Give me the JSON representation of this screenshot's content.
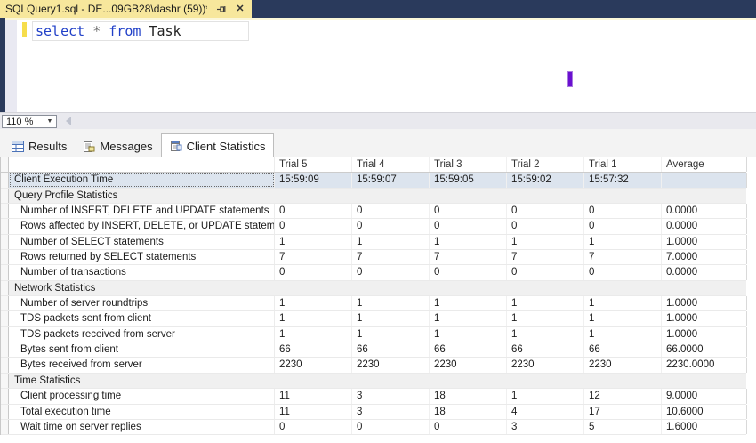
{
  "window": {
    "tab_title": "SQLQuery1.sql - DE...09GB28\\dashr (59))*",
    "pin_icon": "pin",
    "close_icon": "✕"
  },
  "editor": {
    "keyword1_part1": "sel",
    "keyword1_part2": "ect",
    "space": " ",
    "operator": "*",
    "keyword2": "from",
    "identifier": "Task"
  },
  "zoom_control": {
    "value": "110 %",
    "dropdown_icon": "▼"
  },
  "result_tabs": [
    {
      "label": "Results",
      "active": false
    },
    {
      "label": "Messages",
      "active": false
    },
    {
      "label": "Client Statistics",
      "active": true
    }
  ],
  "colors": {
    "tab_yellow": "#f7e79c",
    "title_bar_navy": "#2a3a5c",
    "keyword_blue": "#2140c8",
    "change_bar_yellow": "#f6dd4c",
    "selected_row": "#dce4ee",
    "arrow_steady": "#151515",
    "arrow_increase": "#c40000",
    "arrow_decrease": "#0a7d00",
    "text_cursor_purple": "#6a10d0"
  },
  "grid": {
    "columns": [
      "",
      "Trial 5",
      "Trial 4",
      "Trial 3",
      "Trial 2",
      "Trial 1",
      "Average"
    ],
    "rows": [
      {
        "type": "data",
        "selected": true,
        "label": "Client Execution Time",
        "values": [
          {
            "v": "15:59:09"
          },
          {
            "v": "15:59:07"
          },
          {
            "v": "15:59:05"
          },
          {
            "v": "15:59:02"
          },
          {
            "v": "15:57:32"
          },
          {
            "v": ""
          }
        ]
      },
      {
        "type": "section",
        "label": "Query Profile Statistics"
      },
      {
        "type": "data",
        "label": "Number of INSERT, DELETE and UPDATE statements",
        "values": [
          {
            "v": "0"
          },
          {
            "a": "r",
            "v": "0"
          },
          {
            "a": "r",
            "v": "0"
          },
          {
            "a": "r",
            "v": "0"
          },
          {
            "a": "r",
            "v": "0"
          },
          {
            "a": "r",
            "v": "0.0000"
          }
        ]
      },
      {
        "type": "data",
        "label": "Rows affected by INSERT, DELETE, or UPDATE statements",
        "values": [
          {
            "v": "0"
          },
          {
            "a": "r",
            "v": "0"
          },
          {
            "a": "r",
            "v": "0"
          },
          {
            "a": "r",
            "v": "0"
          },
          {
            "a": "r",
            "v": "0"
          },
          {
            "a": "r",
            "v": "0.0000"
          }
        ]
      },
      {
        "type": "data",
        "label": "Number of SELECT statements",
        "values": [
          {
            "v": "1"
          },
          {
            "a": "r",
            "v": "1"
          },
          {
            "a": "r",
            "v": "1"
          },
          {
            "a": "r",
            "v": "1"
          },
          {
            "a": "r",
            "v": "1"
          },
          {
            "a": "r",
            "v": "1.0000"
          }
        ]
      },
      {
        "type": "data",
        "label": "Rows returned by SELECT statements",
        "values": [
          {
            "v": "7"
          },
          {
            "a": "r",
            "v": "7"
          },
          {
            "a": "r",
            "v": "7"
          },
          {
            "a": "r",
            "v": "7"
          },
          {
            "a": "r",
            "v": "7"
          },
          {
            "a": "r",
            "v": "7.0000"
          }
        ]
      },
      {
        "type": "data",
        "label": "Number of transactions",
        "values": [
          {
            "v": "0"
          },
          {
            "a": "r",
            "v": "0"
          },
          {
            "a": "r",
            "v": "0"
          },
          {
            "a": "r",
            "v": "0"
          },
          {
            "a": "r",
            "v": "0"
          },
          {
            "a": "r",
            "v": "0.0000"
          }
        ]
      },
      {
        "type": "section",
        "label": "Network Statistics"
      },
      {
        "type": "data",
        "label": "Number of server roundtrips",
        "values": [
          {
            "v": "1"
          },
          {
            "a": "r",
            "v": "1"
          },
          {
            "a": "r",
            "v": "1"
          },
          {
            "a": "r",
            "v": "1"
          },
          {
            "a": "r",
            "v": "1"
          },
          {
            "a": "r",
            "v": "1.0000"
          }
        ]
      },
      {
        "type": "data",
        "label": "TDS packets sent from client",
        "values": [
          {
            "v": "1"
          },
          {
            "a": "r",
            "v": "1"
          },
          {
            "a": "r",
            "v": "1"
          },
          {
            "a": "r",
            "v": "1"
          },
          {
            "a": "r",
            "v": "1"
          },
          {
            "a": "r",
            "v": "1.0000"
          }
        ]
      },
      {
        "type": "data",
        "label": "TDS packets received from server",
        "values": [
          {
            "v": "1"
          },
          {
            "a": "r",
            "v": "1"
          },
          {
            "a": "r",
            "v": "1"
          },
          {
            "a": "r",
            "v": "1"
          },
          {
            "a": "r",
            "v": "1"
          },
          {
            "a": "r",
            "v": "1.0000"
          }
        ]
      },
      {
        "type": "data",
        "label": "Bytes sent from client",
        "values": [
          {
            "v": "66"
          },
          {
            "a": "r",
            "v": "66"
          },
          {
            "a": "r",
            "v": "66"
          },
          {
            "a": "r",
            "v": "66"
          },
          {
            "a": "r",
            "v": "66"
          },
          {
            "a": "r",
            "v": "66.0000"
          }
        ]
      },
      {
        "type": "data",
        "label": "Bytes received from server",
        "values": [
          {
            "v": "2230"
          },
          {
            "a": "r",
            "v": "2230"
          },
          {
            "a": "r",
            "v": "2230"
          },
          {
            "a": "r",
            "v": "2230"
          },
          {
            "a": "r",
            "v": "2230"
          },
          {
            "a": "r",
            "v": "2230.0000"
          }
        ]
      },
      {
        "type": "section",
        "label": "Time Statistics"
      },
      {
        "type": "data",
        "label": "Client processing time",
        "values": [
          {
            "v": "11"
          },
          {
            "a": "u",
            "v": "3"
          },
          {
            "a": "d",
            "v": "18"
          },
          {
            "a": "u",
            "v": "1"
          },
          {
            "a": "d",
            "v": "12"
          },
          {
            "a": "r",
            "v": "9.0000"
          }
        ]
      },
      {
        "type": "data",
        "label": "Total execution time",
        "values": [
          {
            "v": "11"
          },
          {
            "a": "u",
            "v": "3"
          },
          {
            "a": "d",
            "v": "18"
          },
          {
            "a": "u",
            "v": "4"
          },
          {
            "a": "d",
            "v": "17"
          },
          {
            "a": "r",
            "v": "10.6000"
          }
        ]
      },
      {
        "type": "data",
        "label": "Wait time on server replies",
        "values": [
          {
            "v": "0"
          },
          {
            "a": "r",
            "v": "0"
          },
          {
            "a": "r",
            "v": "0"
          },
          {
            "a": "d",
            "v": "3"
          },
          {
            "a": "d",
            "v": "5"
          },
          {
            "a": "r",
            "v": "1.6000"
          }
        ]
      }
    ]
  }
}
